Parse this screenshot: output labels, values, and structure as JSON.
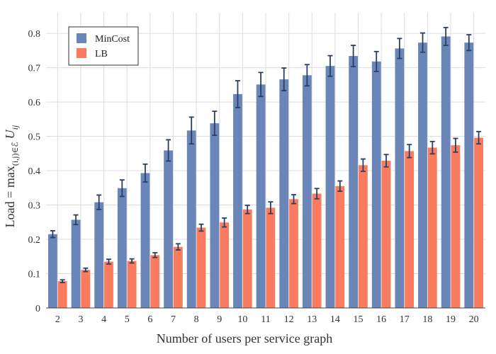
{
  "chart_data": {
    "type": "bar",
    "title": "",
    "xlabel": "Number of users per service graph",
    "ylabel": "Load = max_{(i,j)∈E} U_ij",
    "ylabel_parts": {
      "prefix": "Load = max",
      "subscript": "(i,j)∈ℰ",
      "var": "U",
      "var_sub": "ij"
    },
    "categories": [
      "2",
      "3",
      "4",
      "5",
      "6",
      "7",
      "8",
      "9",
      "10",
      "11",
      "12",
      "13",
      "14",
      "15",
      "16",
      "17",
      "18",
      "19",
      "20"
    ],
    "ylim": [
      0,
      0.86
    ],
    "yticks": [
      0,
      0.1,
      0.2,
      0.3,
      0.4,
      0.5,
      0.6,
      0.7,
      0.8
    ],
    "ytick_labels": [
      "0",
      "0.1",
      "0.2",
      "0.3",
      "0.4",
      "0.5",
      "0.6",
      "0.7",
      "0.8"
    ],
    "grid": true,
    "legend_position": "top-left",
    "series": [
      {
        "name": "MinCost",
        "color": "#6a86b9",
        "values": [
          0.215,
          0.257,
          0.308,
          0.349,
          0.393,
          0.459,
          0.517,
          0.538,
          0.623,
          0.651,
          0.666,
          0.678,
          0.705,
          0.734,
          0.718,
          0.756,
          0.773,
          0.791,
          0.773
        ],
        "errors": [
          0.01,
          0.014,
          0.021,
          0.024,
          0.026,
          0.031,
          0.039,
          0.035,
          0.039,
          0.035,
          0.033,
          0.031,
          0.03,
          0.031,
          0.029,
          0.029,
          0.028,
          0.026,
          0.023
        ]
      },
      {
        "name": "LB",
        "color": "#fa7b5e",
        "values": [
          0.078,
          0.111,
          0.135,
          0.137,
          0.154,
          0.178,
          0.234,
          0.249,
          0.287,
          0.292,
          0.317,
          0.333,
          0.355,
          0.416,
          0.429,
          0.457,
          0.467,
          0.474,
          0.496
        ],
        "errors": [
          0.004,
          0.005,
          0.007,
          0.006,
          0.007,
          0.009,
          0.01,
          0.013,
          0.012,
          0.017,
          0.013,
          0.015,
          0.015,
          0.018,
          0.018,
          0.019,
          0.018,
          0.02,
          0.018
        ]
      }
    ]
  }
}
